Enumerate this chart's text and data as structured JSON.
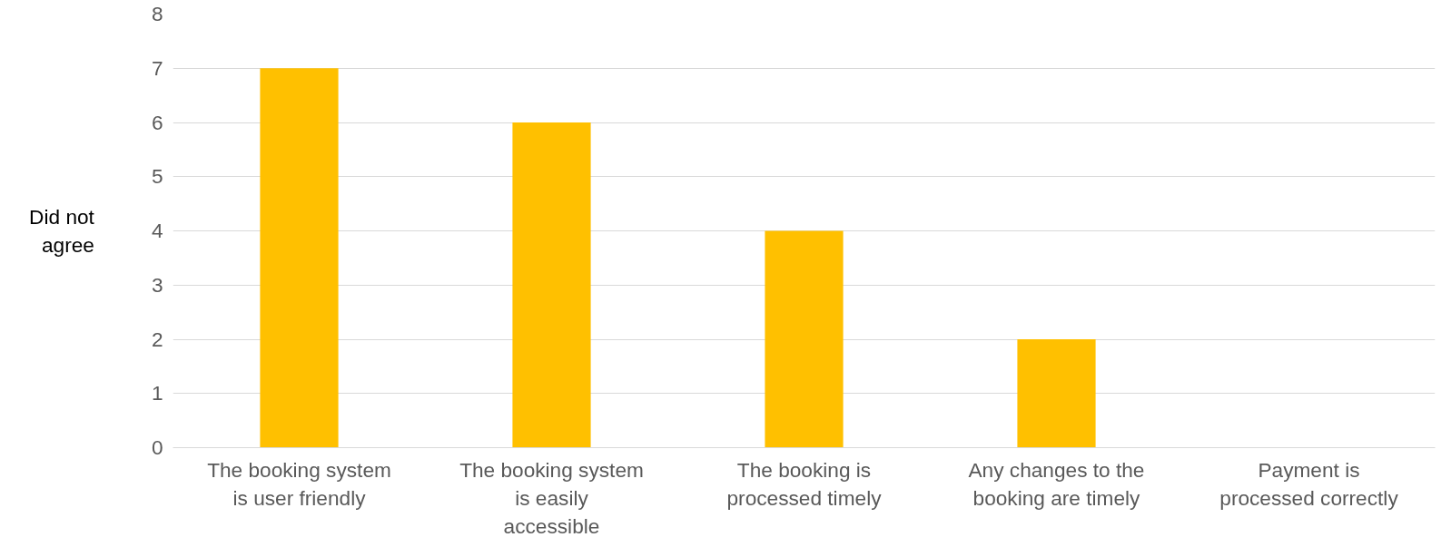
{
  "chart_data": {
    "type": "bar",
    "ylabel": "Did not agree",
    "categories": [
      "The booking system is user friendly",
      "The booking system is easily accessible",
      "The booking is processed timely",
      "Any changes to the booking are timely",
      "Payment is processed correctly"
    ],
    "values": [
      7,
      6,
      4,
      2,
      0
    ],
    "color": "#ffc000",
    "ylim": [
      0,
      8
    ],
    "yticks": [
      0,
      1,
      2,
      3,
      4,
      5,
      6,
      7,
      8
    ],
    "grid": "y"
  }
}
